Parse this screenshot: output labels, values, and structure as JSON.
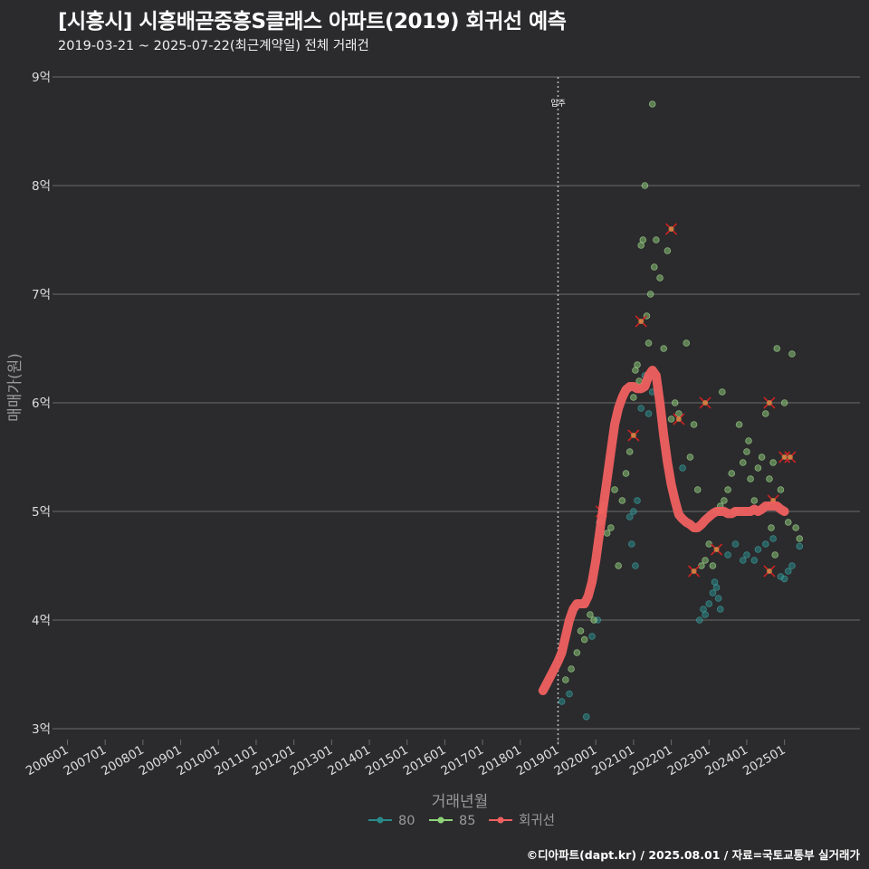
{
  "title": "[시흥시] 시흥배곧중흥S클래스 아파트(2019) 회귀선 예측",
  "subtitle": "2019-03-21 ~ 2025-07-22(최근계약일) 전체 거래건",
  "caption": "©디아파트(dapt.kr) / 2025.08.01 / 자료=국토교통부 실거래가",
  "colors": {
    "background": "#2b2b2d",
    "grid": "#6b6b6b",
    "series_80": "#2a8a8a",
    "series_85": "#8fd27a",
    "regression": "#f06060",
    "outlier": "#cc2222",
    "vline": "#bbbbbb"
  },
  "chart_data": {
    "type": "scatter",
    "xlabel": "거래년월",
    "ylabel": "매매가(원)",
    "ylim": [
      3,
      9
    ],
    "xlim": [
      2005.7,
      2027.0
    ],
    "y_ticks": [
      {
        "value": 3,
        "label": "3억"
      },
      {
        "value": 4,
        "label": "4억"
      },
      {
        "value": 5,
        "label": "5억"
      },
      {
        "value": 6,
        "label": "6억"
      },
      {
        "value": 7,
        "label": "7억"
      },
      {
        "value": 8,
        "label": "8억"
      },
      {
        "value": 9,
        "label": "9억"
      }
    ],
    "x_ticks": [
      {
        "value": 2006.0,
        "label": "200601"
      },
      {
        "value": 2007.0,
        "label": "200701"
      },
      {
        "value": 2008.0,
        "label": "200801"
      },
      {
        "value": 2009.0,
        "label": "200901"
      },
      {
        "value": 2010.0,
        "label": "201001"
      },
      {
        "value": 2011.0,
        "label": "201101"
      },
      {
        "value": 2012.0,
        "label": "201201"
      },
      {
        "value": 2013.0,
        "label": "201301"
      },
      {
        "value": 2014.0,
        "label": "201401"
      },
      {
        "value": 2015.0,
        "label": "201501"
      },
      {
        "value": 2016.0,
        "label": "201601"
      },
      {
        "value": 2017.0,
        "label": "201701"
      },
      {
        "value": 2018.0,
        "label": "201801"
      },
      {
        "value": 2019.0,
        "label": "201901"
      },
      {
        "value": 2020.0,
        "label": "202001"
      },
      {
        "value": 2021.0,
        "label": "202101"
      },
      {
        "value": 2022.0,
        "label": "202201"
      },
      {
        "value": 2023.0,
        "label": "202301"
      },
      {
        "value": 2024.0,
        "label": "202401"
      },
      {
        "value": 2025.0,
        "label": "202501"
      }
    ],
    "annotation": {
      "x": 2019.0,
      "label": "입주"
    },
    "legend": {
      "position": "bottom",
      "items": [
        {
          "key": "80",
          "label": "80"
        },
        {
          "key": "85",
          "label": "85"
        },
        {
          "key": "regression",
          "label": "회귀선"
        }
      ]
    },
    "series": [
      {
        "name": "80",
        "points": [
          [
            2019.1,
            3.25
          ],
          [
            2019.3,
            3.32
          ],
          [
            2019.75,
            3.11
          ],
          [
            2019.9,
            3.85
          ],
          [
            2020.05,
            4.0
          ],
          [
            2020.9,
            4.95
          ],
          [
            2020.95,
            4.7
          ],
          [
            2021.0,
            5.0
          ],
          [
            2021.05,
            4.5
          ],
          [
            2021.1,
            5.1
          ],
          [
            2021.2,
            5.95
          ],
          [
            2021.3,
            6.25
          ],
          [
            2021.4,
            5.9
          ],
          [
            2021.5,
            6.1
          ],
          [
            2022.3,
            5.4
          ],
          [
            2022.75,
            4.0
          ],
          [
            2022.85,
            4.1
          ],
          [
            2022.9,
            4.05
          ],
          [
            2023.0,
            4.15
          ],
          [
            2023.1,
            4.25
          ],
          [
            2023.15,
            4.35
          ],
          [
            2023.2,
            4.3
          ],
          [
            2023.25,
            4.2
          ],
          [
            2023.3,
            4.1
          ],
          [
            2023.5,
            4.6
          ],
          [
            2023.7,
            4.7
          ],
          [
            2023.9,
            4.55
          ],
          [
            2024.0,
            4.6
          ],
          [
            2024.2,
            4.55
          ],
          [
            2024.3,
            4.65
          ],
          [
            2024.5,
            4.7
          ],
          [
            2024.7,
            4.75
          ],
          [
            2024.9,
            4.4
          ],
          [
            2025.0,
            4.38
          ],
          [
            2025.1,
            4.45
          ],
          [
            2025.2,
            4.5
          ],
          [
            2025.4,
            4.68
          ]
        ]
      },
      {
        "name": "85",
        "points": [
          [
            2019.2,
            3.45
          ],
          [
            2019.35,
            3.55
          ],
          [
            2019.5,
            3.7
          ],
          [
            2019.6,
            3.9
          ],
          [
            2019.7,
            3.82
          ],
          [
            2019.85,
            4.05
          ],
          [
            2019.95,
            4.0
          ],
          [
            2020.1,
            4.9
          ],
          [
            2020.2,
            5.05
          ],
          [
            2020.3,
            4.8
          ],
          [
            2020.4,
            4.85
          ],
          [
            2020.5,
            5.2
          ],
          [
            2020.6,
            4.5
          ],
          [
            2020.7,
            5.1
          ],
          [
            2020.8,
            5.35
          ],
          [
            2020.9,
            5.55
          ],
          [
            2021.0,
            6.05
          ],
          [
            2021.05,
            6.3
          ],
          [
            2021.1,
            6.35
          ],
          [
            2021.15,
            6.2
          ],
          [
            2021.2,
            7.45
          ],
          [
            2021.25,
            7.5
          ],
          [
            2021.3,
            8.0
          ],
          [
            2021.35,
            6.8
          ],
          [
            2021.4,
            6.55
          ],
          [
            2021.45,
            7.0
          ],
          [
            2021.5,
            8.75
          ],
          [
            2021.55,
            7.25
          ],
          [
            2021.6,
            7.5
          ],
          [
            2021.7,
            7.15
          ],
          [
            2021.8,
            6.5
          ],
          [
            2021.9,
            7.4
          ],
          [
            2022.0,
            5.85
          ],
          [
            2022.1,
            6.0
          ],
          [
            2022.2,
            5.9
          ],
          [
            2022.4,
            6.55
          ],
          [
            2022.5,
            5.5
          ],
          [
            2022.6,
            5.8
          ],
          [
            2022.7,
            5.2
          ],
          [
            2022.8,
            4.5
          ],
          [
            2022.9,
            4.55
          ],
          [
            2023.0,
            4.7
          ],
          [
            2023.1,
            4.5
          ],
          [
            2023.2,
            5.0
          ],
          [
            2023.3,
            5.05
          ],
          [
            2023.4,
            5.1
          ],
          [
            2023.5,
            5.2
          ],
          [
            2023.6,
            5.35
          ],
          [
            2023.7,
            5.0
          ],
          [
            2023.8,
            5.8
          ],
          [
            2023.9,
            5.45
          ],
          [
            2024.0,
            5.55
          ],
          [
            2024.05,
            5.65
          ],
          [
            2024.1,
            5.3
          ],
          [
            2024.2,
            5.1
          ],
          [
            2024.3,
            5.4
          ],
          [
            2024.4,
            5.5
          ],
          [
            2024.5,
            5.9
          ],
          [
            2024.6,
            5.3
          ],
          [
            2024.7,
            5.45
          ],
          [
            2024.8,
            6.5
          ],
          [
            2024.9,
            5.2
          ],
          [
            2025.0,
            6.0
          ],
          [
            2025.1,
            4.9
          ],
          [
            2025.2,
            6.45
          ],
          [
            2025.3,
            4.85
          ],
          [
            2025.4,
            4.75
          ],
          [
            2023.35,
            6.1
          ],
          [
            2024.65,
            4.85
          ],
          [
            2024.75,
            4.6
          ]
        ]
      },
      {
        "name": "회귀선",
        "points": [
          [
            2018.6,
            3.35
          ],
          [
            2018.75,
            3.45
          ],
          [
            2018.9,
            3.55
          ],
          [
            2019.0,
            3.62
          ],
          [
            2019.1,
            3.7
          ],
          [
            2019.2,
            3.85
          ],
          [
            2019.3,
            4.0
          ],
          [
            2019.4,
            4.1
          ],
          [
            2019.5,
            4.15
          ],
          [
            2019.6,
            4.15
          ],
          [
            2019.7,
            4.15
          ],
          [
            2019.8,
            4.22
          ],
          [
            2019.9,
            4.35
          ],
          [
            2020.0,
            4.55
          ],
          [
            2020.1,
            4.8
          ],
          [
            2020.2,
            5.05
          ],
          [
            2020.3,
            5.3
          ],
          [
            2020.4,
            5.55
          ],
          [
            2020.5,
            5.8
          ],
          [
            2020.6,
            5.95
          ],
          [
            2020.7,
            6.05
          ],
          [
            2020.8,
            6.12
          ],
          [
            2020.9,
            6.15
          ],
          [
            2021.0,
            6.15
          ],
          [
            2021.1,
            6.13
          ],
          [
            2021.2,
            6.13
          ],
          [
            2021.3,
            6.15
          ],
          [
            2021.4,
            6.25
          ],
          [
            2021.5,
            6.3
          ],
          [
            2021.6,
            6.25
          ],
          [
            2021.7,
            6.0
          ],
          [
            2021.8,
            5.7
          ],
          [
            2021.9,
            5.45
          ],
          [
            2022.0,
            5.25
          ],
          [
            2022.1,
            5.1
          ],
          [
            2022.2,
            4.97
          ],
          [
            2022.3,
            4.93
          ],
          [
            2022.4,
            4.9
          ],
          [
            2022.5,
            4.88
          ],
          [
            2022.6,
            4.85
          ],
          [
            2022.7,
            4.85
          ],
          [
            2022.8,
            4.88
          ],
          [
            2022.9,
            4.92
          ],
          [
            2023.0,
            4.95
          ],
          [
            2023.1,
            4.98
          ],
          [
            2023.2,
            5.0
          ],
          [
            2023.3,
            5.0
          ],
          [
            2023.4,
            5.0
          ],
          [
            2023.5,
            4.98
          ],
          [
            2023.6,
            4.98
          ],
          [
            2023.7,
            5.0
          ],
          [
            2023.8,
            5.0
          ],
          [
            2023.9,
            5.0
          ],
          [
            2024.0,
            5.0
          ],
          [
            2024.1,
            5.0
          ],
          [
            2024.2,
            5.02
          ],
          [
            2024.3,
            5.0
          ],
          [
            2024.4,
            5.02
          ],
          [
            2024.5,
            5.05
          ],
          [
            2024.6,
            5.05
          ],
          [
            2024.7,
            5.05
          ],
          [
            2024.8,
            5.05
          ],
          [
            2024.9,
            5.02
          ],
          [
            2025.0,
            5.0
          ]
        ]
      }
    ],
    "outliers": [
      [
        2020.15,
        5.0
      ],
      [
        2021.2,
        6.75
      ],
      [
        2022.0,
        7.6
      ],
      [
        2021.0,
        5.7
      ],
      [
        2022.2,
        5.85
      ],
      [
        2022.6,
        4.45
      ],
      [
        2022.9,
        6.0
      ],
      [
        2023.2,
        4.65
      ],
      [
        2024.6,
        6.0
      ],
      [
        2024.6,
        4.45
      ],
      [
        2024.7,
        5.1
      ],
      [
        2025.0,
        5.5
      ],
      [
        2025.15,
        5.5
      ]
    ]
  }
}
